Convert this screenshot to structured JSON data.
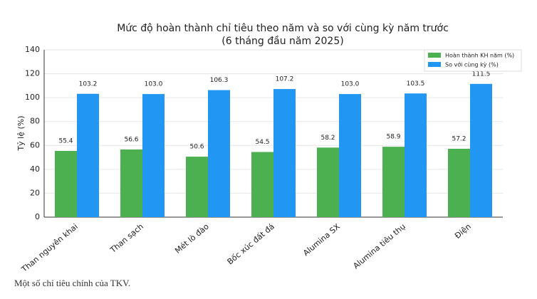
{
  "chart_data": {
    "type": "bar",
    "title": "Mức độ hoàn thành chỉ tiêu theo năm và so với cùng kỳ năm trước",
    "subtitle": "(6 tháng đầu năm 2025)",
    "y_label": "Tỷ lệ (%)",
    "categories": [
      "Than nguyên khai",
      "Than sạch",
      "Mét lò đào",
      "Bốc xúc đất đá",
      "Alumina SX",
      "Alumina tiêu thụ",
      "Điện"
    ],
    "series": [
      {
        "name": "Hoàn thành KH năm (%)",
        "color": "#4caf50",
        "values": [
          55.4,
          56.6,
          50.6,
          54.5,
          58.2,
          58.9,
          57.2
        ],
        "value_labels": [
          "55.4",
          "56.6",
          "50.6",
          "54.5",
          "58.2",
          "58.9",
          "57.2"
        ]
      },
      {
        "name": "So với cùng kỳ (%)",
        "color": "#2196f3",
        "values": [
          103.2,
          103.0,
          106.3,
          107.2,
          103.0,
          103.5,
          111.5
        ],
        "value_labels": [
          "103.2",
          "103.0",
          "106.3",
          "107.2",
          "103.0",
          "103.5",
          "111.5"
        ]
      }
    ],
    "ylim": [
      0,
      140
    ],
    "yticks": [
      0,
      20,
      40,
      60,
      80,
      100,
      120,
      140
    ],
    "grid": true,
    "legend": "upper right"
  },
  "caption": "Một số chỉ tiêu chính của TKV."
}
